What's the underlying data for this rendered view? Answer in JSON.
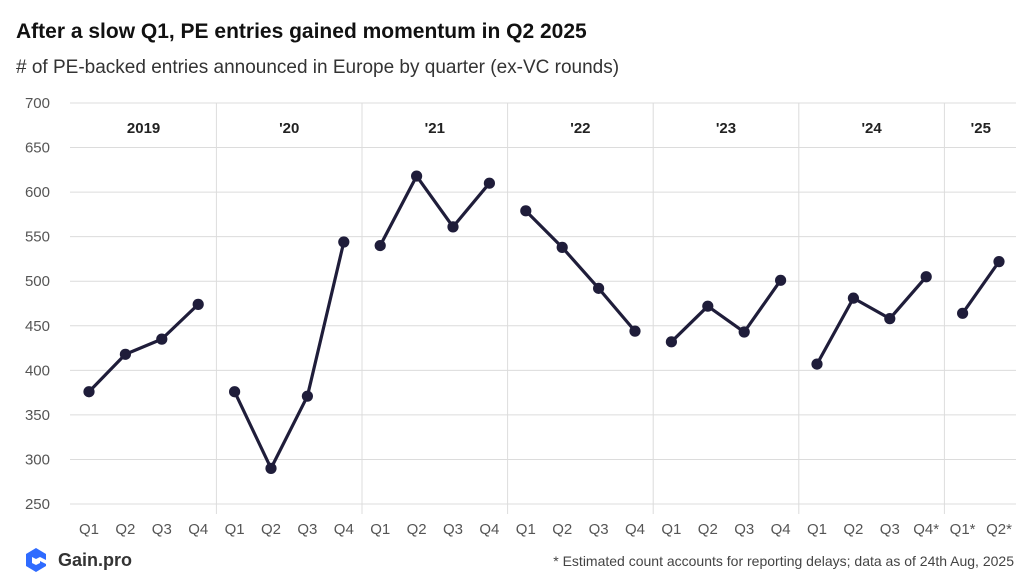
{
  "title": "After a slow Q1, PE entries gained momentum in Q2 2025",
  "subtitle": "# of PE-backed entries announced in Europe by quarter (ex-VC rounds)",
  "footnote": "* Estimated count accounts for reporting delays;  data as of 24th Aug, 2025",
  "logo": {
    "text": "Gain.pro",
    "icon": "gain-pro-logo-icon"
  },
  "colors": {
    "line": "#1f1d3a",
    "grid": "#dcdcdc"
  },
  "chart_data": {
    "type": "line",
    "title": "After a slow Q1, PE entries gained momentum in Q2 2025",
    "subtitle": "# of PE-backed entries announced in Europe by quarter (ex-VC rounds)",
    "ylim": [
      250,
      700
    ],
    "yticks": [
      250,
      300,
      350,
      400,
      450,
      500,
      550,
      600,
      650,
      700
    ],
    "grid": true,
    "legend": "none",
    "groups": [
      {
        "label": "2019",
        "quarters": [
          "Q1",
          "Q2",
          "Q3",
          "Q4"
        ],
        "values": [
          376,
          418,
          435,
          474
        ]
      },
      {
        "label": "'20",
        "quarters": [
          "Q1",
          "Q2",
          "Q3",
          "Q4"
        ],
        "values": [
          376,
          290,
          371,
          544
        ]
      },
      {
        "label": "'21",
        "quarters": [
          "Q1",
          "Q2",
          "Q3",
          "Q4"
        ],
        "values": [
          540,
          618,
          561,
          610
        ]
      },
      {
        "label": "'22",
        "quarters": [
          "Q1",
          "Q2",
          "Q3",
          "Q4"
        ],
        "values": [
          579,
          538,
          492,
          444
        ]
      },
      {
        "label": "'23",
        "quarters": [
          "Q1",
          "Q2",
          "Q3",
          "Q4"
        ],
        "values": [
          432,
          472,
          443,
          501
        ]
      },
      {
        "label": "'24",
        "quarters": [
          "Q1",
          "Q2",
          "Q3",
          "Q4*"
        ],
        "values": [
          407,
          481,
          458,
          505
        ]
      },
      {
        "label": "'25",
        "quarters": [
          "Q1*",
          "Q2*"
        ],
        "values": [
          464,
          522
        ]
      }
    ]
  }
}
